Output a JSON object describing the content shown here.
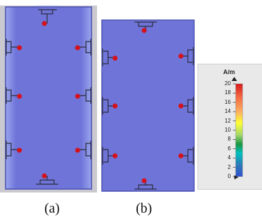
{
  "captions": {
    "a": "(a)",
    "b": "(b)"
  },
  "legend": {
    "unit": "A/m",
    "ticks": [
      "20",
      "18",
      "16",
      "14",
      "12",
      "10",
      "8",
      "6",
      "4",
      "2",
      "0"
    ],
    "max": 20,
    "min": 0,
    "colors": [
      "#d7191c",
      "#f46d43",
      "#fdae61",
      "#ffff00",
      "#a6d96a",
      "#1a9641",
      "#00c0c0",
      "#2c7bb6",
      "#3050d0"
    ]
  },
  "colors": {
    "board": "#6f74d9",
    "board_edge": "#4a4fb0",
    "port": "#d4121c",
    "hotspot": "#ffe84a"
  }
}
